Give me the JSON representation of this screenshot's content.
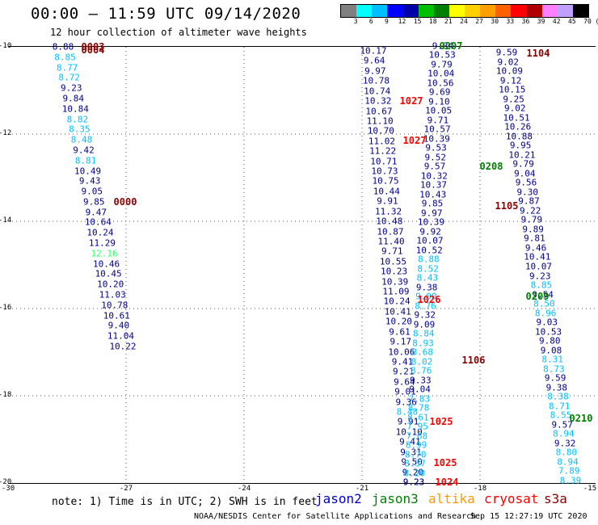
{
  "header": {
    "title": "00:00 – 11:59 UTC 09/14/2020",
    "subtitle": "12 hour collection of altimeter wave heights"
  },
  "color_scale": {
    "labels": [
      "3",
      "6",
      "9",
      "12",
      "15",
      "18",
      "21",
      "24",
      "27",
      "30",
      "33",
      "36",
      "39",
      "42",
      "45",
      "70",
      "(ft)"
    ],
    "colors": [
      "#808080",
      "#00ffff",
      "#00bfff",
      "#0000ff",
      "#0000aa",
      "#00c000",
      "#008000",
      "#ffff00",
      "#ffd000",
      "#ffa000",
      "#ff6000",
      "#ff0000",
      "#b00000",
      "#ff80ff",
      "#c0a0ff",
      "#000000"
    ]
  },
  "axes": {
    "y_labels": [
      "-10",
      "-12",
      "-14",
      "-16",
      "-18",
      "-20"
    ],
    "x_labels": [
      "-30",
      "-27",
      "-24",
      "-21",
      "-18",
      "-15"
    ]
  },
  "track_a": {
    "values": [
      "8.88",
      "8.85",
      "8.77",
      "8.72",
      "9.23",
      "9.84",
      "10.84",
      "8.82",
      "8.35",
      "8.48",
      "9.42",
      "8.81",
      "10.49",
      "9.43",
      "9.05",
      "9.85",
      "9.47",
      "10.64",
      "10.24",
      "11.29",
      "12.16",
      "10.46",
      "10.45",
      "10.20",
      "11.03",
      "10.78",
      "10.61",
      "9.40",
      "11.04",
      "10.22"
    ],
    "colors": [
      "#00008b",
      "#00bfff",
      "#00bfff",
      "#00bfff",
      "#00008b",
      "#00008b",
      "#00008b",
      "#00bfff",
      "#00bfff",
      "#00bfff",
      "#00008b",
      "#00bfff",
      "#00008b",
      "#00008b",
      "#00008b",
      "#00008b",
      "#00008b",
      "#00008b",
      "#00008b",
      "#00008b",
      "#33ff66",
      "#00008b",
      "#00008b",
      "#00008b",
      "#00008b",
      "#00008b",
      "#00008b",
      "#00008b",
      "#00008b",
      "#00008b"
    ]
  },
  "track_b": {
    "values": [
      "10.17",
      "9.64",
      "9.97",
      "10.78",
      "10.74",
      "10.32",
      "10.67",
      "11.10",
      "10.70",
      "11.02",
      "11.22",
      "10.71",
      "10.73",
      "10.75",
      "10.44",
      "9.91",
      "11.32",
      "10.48",
      "10.87",
      "11.40",
      "9.71",
      "10.55",
      "10.23",
      "10.39",
      "11.09",
      "10.24",
      "10.41",
      "10.20",
      "9.61",
      "9.17",
      "10.06",
      "9.41",
      "9.21",
      "9.64",
      "9.01",
      "9.36",
      "8.48",
      "9.91",
      "10.10",
      "9.41",
      "9.31",
      "9.50",
      "9.20",
      "9.23"
    ],
    "colors": [
      "#00008b",
      "#00008b",
      "#00008b",
      "#00008b",
      "#00008b",
      "#00008b",
      "#00008b",
      "#00008b",
      "#00008b",
      "#00008b",
      "#00008b",
      "#00008b",
      "#00008b",
      "#00008b",
      "#00008b",
      "#00008b",
      "#00008b",
      "#00008b",
      "#00008b",
      "#00008b",
      "#00008b",
      "#00008b",
      "#00008b",
      "#00008b",
      "#00008b",
      "#00008b",
      "#00008b",
      "#00008b",
      "#00008b",
      "#00008b",
      "#00008b",
      "#00008b",
      "#00008b",
      "#00008b",
      "#00008b",
      "#00008b",
      "#00bfff",
      "#00008b",
      "#00008b",
      "#00008b",
      "#00008b",
      "#00008b",
      "#00008b",
      "#00008b"
    ]
  },
  "track_c": {
    "values": [
      "9.34",
      "10.53",
      "9.79",
      "10.04",
      "10.56",
      "9.69",
      "9.10",
      "10.05",
      "9.71",
      "10.57",
      "10.39",
      "9.53",
      "9.52",
      "9.57",
      "10.32",
      "10.37",
      "10.43",
      "9.85",
      "9.97",
      "10.39",
      "9.92",
      "10.07",
      "10.52",
      "8.88",
      "8.52",
      "8.43",
      "9.38",
      "9.00",
      "8.76",
      "9.32",
      "9.09",
      "8.84",
      "8.93",
      "8.68",
      "8.02",
      "8.76",
      "9.33",
      "9.04",
      "7.83",
      "8.78",
      "8.61",
      "7.95",
      "7.68",
      "8.99",
      "8.70",
      "8.37",
      "8.20",
      "9.23"
    ],
    "colors": [
      "#00008b",
      "#00008b",
      "#00008b",
      "#00008b",
      "#00008b",
      "#00008b",
      "#00008b",
      "#00008b",
      "#00008b",
      "#00008b",
      "#00008b",
      "#00008b",
      "#00008b",
      "#00008b",
      "#00008b",
      "#00008b",
      "#00008b",
      "#00008b",
      "#00008b",
      "#00008b",
      "#00008b",
      "#00008b",
      "#00008b",
      "#00bfff",
      "#00bfff",
      "#00bfff",
      "#00008b",
      "#00bfff",
      "#00bfff",
      "#00008b",
      "#00008b",
      "#00bfff",
      "#00bfff",
      "#00bfff",
      "#00bfff",
      "#00bfff",
      "#00008b",
      "#00008b",
      "#00bfff",
      "#00bfff",
      "#00bfff",
      "#00bfff",
      "#00bfff",
      "#00bfff",
      "#00bfff",
      "#00bfff",
      "#00bfff",
      "#00008b"
    ]
  },
  "track_d": {
    "values": [
      "9.59",
      "9.02",
      "10.09",
      "9.12",
      "10.15",
      "9.25",
      "9.02",
      "10.51",
      "10.26",
      "10.88",
      "9.95",
      "10.21",
      "9.79",
      "9.04",
      "9.56",
      "9.30",
      "9.87",
      "9.22",
      "9.79",
      "9.89",
      "9.81",
      "9.46",
      "10.41",
      "10.07",
      "9.23",
      "8.85",
      "9.54",
      "8.50",
      "8.96",
      "9.03",
      "10.53",
      "9.80",
      "9.08",
      "8.31",
      "8.73",
      "9.59",
      "9.38",
      "8.38",
      "8.71",
      "8.55",
      "9.57",
      "8.94",
      "9.32",
      "8.80",
      "8.94",
      "7.89",
      "8.39"
    ],
    "colors": [
      "#00008b",
      "#00008b",
      "#00008b",
      "#00008b",
      "#00008b",
      "#00008b",
      "#00008b",
      "#00008b",
      "#00008b",
      "#00008b",
      "#00008b",
      "#00008b",
      "#00008b",
      "#00008b",
      "#00008b",
      "#00008b",
      "#00008b",
      "#00008b",
      "#00008b",
      "#00008b",
      "#00008b",
      "#00008b",
      "#00008b",
      "#00008b",
      "#00008b",
      "#00bfff",
      "#00008b",
      "#00bfff",
      "#00bfff",
      "#00008b",
      "#00008b",
      "#00008b",
      "#00008b",
      "#00bfff",
      "#00bfff",
      "#00008b",
      "#00008b",
      "#00bfff",
      "#00bfff",
      "#00bfff",
      "#00008b",
      "#00bfff",
      "#00008b",
      "#00bfff",
      "#00bfff",
      "#00bfff",
      "#00bfff"
    ]
  },
  "time_labels": [
    {
      "text": "0003",
      "color": "#8b0000"
    },
    {
      "text": "0004",
      "color": "#8b0000"
    },
    {
      "text": "0000",
      "color": "#8b0000"
    },
    {
      "text": "0207",
      "color": "#008000"
    },
    {
      "text": "1104",
      "color": "#8b0000"
    },
    {
      "text": "1027",
      "color": "#ff0000"
    },
    {
      "text": "1027",
      "color": "#ff0000"
    },
    {
      "text": "0208",
      "color": "#008000"
    },
    {
      "text": "1105",
      "color": "#8b0000"
    },
    {
      "text": "1026",
      "color": "#ff0000"
    },
    {
      "text": "0209",
      "color": "#008000"
    },
    {
      "text": "1106",
      "color": "#8b0000"
    },
    {
      "text": "1025",
      "color": "#ff0000"
    },
    {
      "text": "0210",
      "color": "#008000"
    },
    {
      "text": "1025",
      "color": "#ff0000"
    },
    {
      "text": "1024",
      "color": "#ff0000"
    }
  ],
  "footer": {
    "note": "note:  1) Time is in UTC;  2) SWH is in feet",
    "satellites": [
      {
        "name": "jason2",
        "color": "#0000cc"
      },
      {
        "name": "jason3",
        "color": "#008000"
      },
      {
        "name": "altika",
        "color": "#ff9900"
      },
      {
        "name": "cryosat",
        "color": "#ff0000"
      },
      {
        "name": "s3a",
        "color": "#8b0000"
      }
    ],
    "credit": "NOAA/NESDIS Center for Satellite Applications and Research",
    "updated": "Sep 15 12:27:19 UTC 2020"
  }
}
